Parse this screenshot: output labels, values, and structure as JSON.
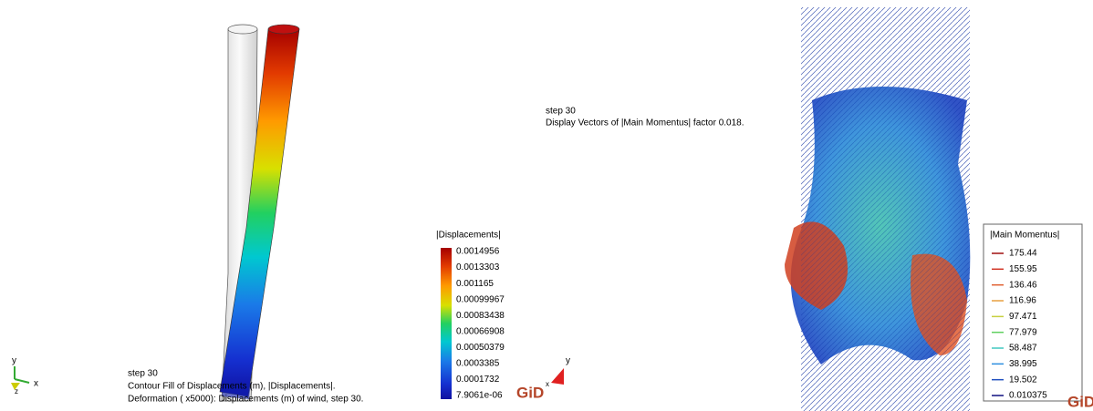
{
  "left_view": {
    "axes": {
      "y": "y",
      "x": "x",
      "z": "z"
    },
    "caption": [
      "step 30",
      "Contour Fill of Displacements (m), |Displacements|.",
      "Deformation ( x5000): Displacements (m) of wind, step 30."
    ],
    "legend": {
      "title": "|Displacements|",
      "labels": [
        "0.0014956",
        "0.0013303",
        "0.001165",
        "0.00099967",
        "0.00083438",
        "0.00066908",
        "0.00050379",
        "0.0003385",
        "0.0001732",
        "7.9061e-06"
      ]
    },
    "logo": "GiD"
  },
  "right_view": {
    "axes": {
      "y": "y",
      "x": "x"
    },
    "caption": [
      "step 30",
      "Display Vectors of |Main Momentus| factor 0.018."
    ],
    "legend": {
      "title": "|Main Momentus|",
      "labels": [
        "175.44",
        "155.95",
        "136.46",
        "116.96",
        "97.471",
        "77.979",
        "58.487",
        "38.995",
        "19.502",
        "0.010375"
      ]
    },
    "logo": "GiD"
  }
}
